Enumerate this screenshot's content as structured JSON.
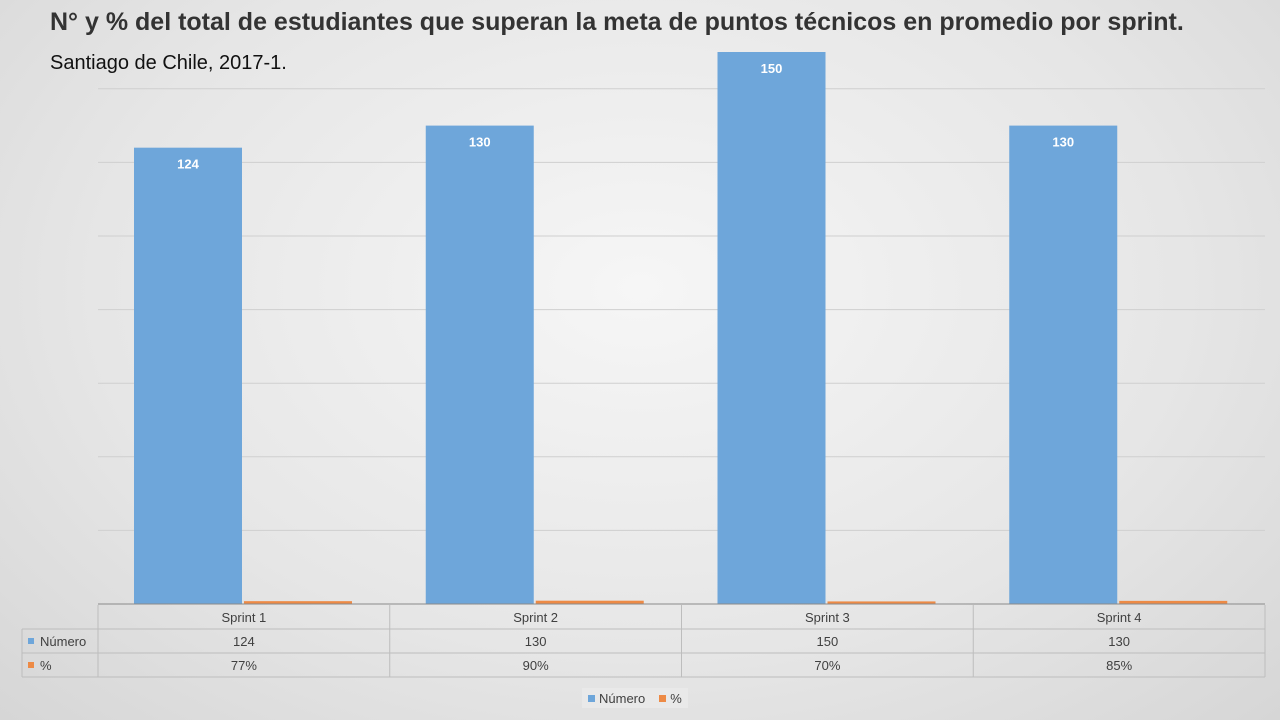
{
  "title": "N° y % del total de estudiantes que superan la meta de puntos técnicos en promedio por sprint.",
  "subtitle": "Santiago de Chile, 2017-1.",
  "colors": {
    "numero": "#6ea6da",
    "pct": "#ed8a45"
  },
  "chart_data": {
    "type": "bar",
    "categories": [
      "Sprint 1",
      "Sprint 2",
      "Sprint 3",
      "Sprint 4"
    ],
    "series": [
      {
        "name": "Número",
        "values": [
          124,
          130,
          150,
          130
        ],
        "labels": [
          "124",
          "130",
          "150",
          "130"
        ]
      },
      {
        "name": "%",
        "values": [
          0.77,
          0.9,
          0.7,
          0.85
        ],
        "labels": [
          "77%",
          "90%",
          "70%",
          "85%"
        ]
      }
    ],
    "ylim": [
      0,
      150
    ],
    "grid": true,
    "legend_position": "bottom",
    "data_table": true
  }
}
